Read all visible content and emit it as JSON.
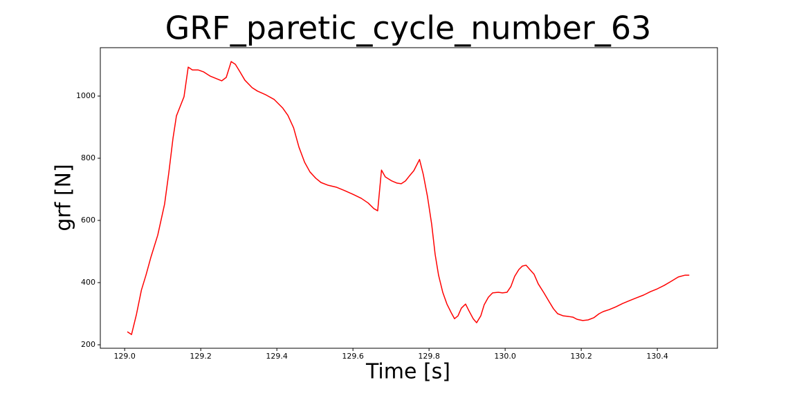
{
  "chart_data": {
    "type": "line",
    "title": "GRF_paretic_cycle_number_63",
    "xlabel": "Time [s]",
    "ylabel": "grf [N]",
    "x": [
      129.007,
      129.018,
      129.031,
      129.044,
      129.056,
      129.069,
      129.087,
      129.105,
      129.116,
      129.127,
      129.136,
      129.145,
      129.156,
      129.167,
      129.178,
      129.193,
      129.207,
      129.225,
      129.255,
      129.267,
      129.28,
      129.291,
      129.302,
      129.316,
      129.335,
      129.349,
      129.371,
      129.393,
      129.415,
      129.429,
      129.444,
      129.458,
      129.473,
      129.487,
      129.502,
      129.516,
      129.535,
      129.556,
      129.578,
      129.6,
      129.622,
      129.64,
      129.655,
      129.665,
      129.675,
      129.685,
      129.702,
      129.716,
      129.727,
      129.738,
      129.749,
      129.76,
      129.775,
      129.785,
      129.796,
      129.807,
      129.816,
      129.825,
      129.836,
      129.847,
      129.858,
      129.867,
      129.876,
      129.885,
      129.896,
      129.905,
      129.916,
      129.925,
      129.936,
      129.945,
      129.956,
      129.967,
      129.982,
      129.993,
      130.005,
      130.015,
      130.025,
      130.036,
      130.045,
      130.055,
      130.065,
      130.076,
      130.087,
      130.102,
      130.116,
      130.127,
      130.138,
      130.153,
      130.167,
      130.178,
      130.189,
      130.204,
      130.218,
      130.233,
      130.247,
      130.258,
      130.273,
      130.291,
      130.309,
      130.327,
      130.345,
      130.364,
      130.382,
      130.4,
      130.418,
      130.436,
      130.455,
      130.473,
      130.484
    ],
    "series": [
      {
        "name": "grf",
        "color": "#ff0000",
        "values": [
          242,
          233,
          298,
          376,
          424,
          482,
          553,
          653,
          753,
          864,
          936,
          964,
          998,
          1093,
          1084,
          1084,
          1078,
          1064,
          1049,
          1060,
          1111,
          1102,
          1080,
          1051,
          1027,
          1016,
          1004,
          989,
          962,
          938,
          898,
          836,
          787,
          756,
          736,
          722,
          713,
          707,
          696,
          684,
          671,
          656,
          638,
          631,
          762,
          740,
          727,
          720,
          718,
          727,
          744,
          760,
          796,
          747,
          676,
          587,
          491,
          424,
          369,
          331,
          304,
          284,
          293,
          318,
          331,
          309,
          284,
          271,
          293,
          329,
          353,
          367,
          369,
          367,
          369,
          387,
          420,
          442,
          453,
          456,
          442,
          427,
          396,
          367,
          338,
          316,
          300,
          293,
          291,
          289,
          282,
          278,
          280,
          287,
          300,
          307,
          313,
          322,
          333,
          342,
          351,
          360,
          371,
          380,
          391,
          404,
          418,
          424,
          424
        ]
      }
    ],
    "xlim": [
      128.936,
      130.558
    ],
    "ylim": [
      188.9,
      1155.6
    ],
    "xticks": [
      {
        "value": 129,
        "label": "129.0"
      },
      129.2,
      129.4,
      129.6,
      129.8,
      {
        "value": 130,
        "label": "130.0"
      },
      130.2,
      130.4
    ],
    "yticks": [
      200,
      400,
      600,
      800,
      1000
    ]
  }
}
